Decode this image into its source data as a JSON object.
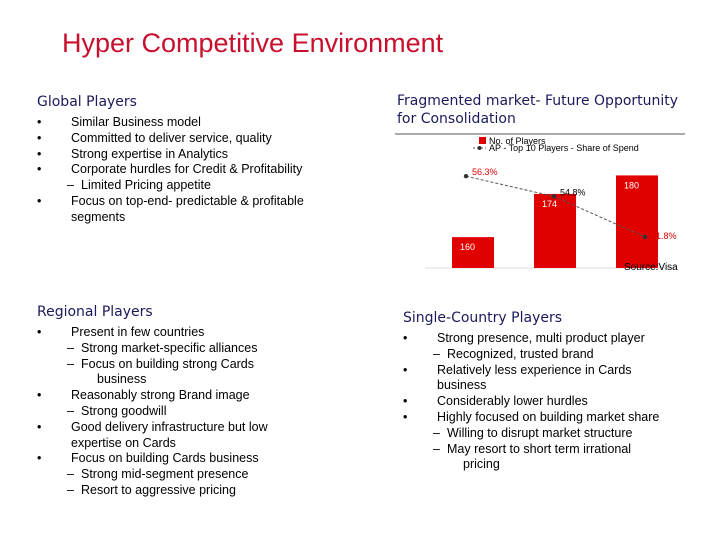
{
  "title": "Hyper Competitive Environment",
  "global": {
    "heading": "Global Players",
    "items": [
      {
        "kind": "b",
        "text": "Similar Business model"
      },
      {
        "kind": "b",
        "text": "Committed to deliver service, quality"
      },
      {
        "kind": "b",
        "text": "Strong expertise in Analytics"
      },
      {
        "kind": "b",
        "text": "Corporate hurdles for Credit & Profitability"
      },
      {
        "kind": "d",
        "text": "Limited Pricing appetite"
      },
      {
        "kind": "b",
        "text": "Focus on top-end- predictable & profitable"
      },
      {
        "kind": "w",
        "text": "segments"
      }
    ]
  },
  "regional": {
    "heading": "Regional Players",
    "items": [
      {
        "kind": "b",
        "text": "Present in few countries"
      },
      {
        "kind": "d",
        "text": "Strong market-specific alliances"
      },
      {
        "kind": "d",
        "text": "Focus on building strong Cards"
      },
      {
        "kind": "w2",
        "text": "business"
      },
      {
        "kind": "b",
        "text": "Reasonably strong Brand image"
      },
      {
        "kind": "d",
        "text": "Strong goodwill"
      },
      {
        "kind": "b",
        "text": "Good delivery infrastructure but low"
      },
      {
        "kind": "w",
        "text": "expertise on Cards"
      },
      {
        "kind": "b",
        "text": "Focus on building Cards business"
      },
      {
        "kind": "d",
        "text": "Strong mid-segment presence"
      },
      {
        "kind": "d",
        "text": "Resort to aggressive pricing"
      }
    ]
  },
  "fragmented": {
    "heading_line1": "Fragmented market- Future Opportunity",
    "heading_line2": "for Consolidation"
  },
  "single": {
    "heading": "Single-Country Players",
    "items": [
      {
        "kind": "b",
        "text": "Strong presence, multi product player"
      },
      {
        "kind": "d",
        "text": "Recognized, trusted brand"
      },
      {
        "kind": "b",
        "text": "Relatively less experience in Cards"
      },
      {
        "kind": "w",
        "text": "business"
      },
      {
        "kind": "b",
        "text": "Considerably lower hurdles"
      },
      {
        "kind": "b",
        "text": "Highly focused on building market share"
      },
      {
        "kind": "d",
        "text": "Willing to disrupt market structure"
      },
      {
        "kind": "d",
        "text": "May resort to short term irrational"
      },
      {
        "kind": "w2",
        "text": "pricing"
      }
    ]
  },
  "chart_data": {
    "type": "bar",
    "categories": [
      "",
      "",
      ""
    ],
    "legend": [
      "No. of Players",
      "AP - Top 10 Players - Share of Spend"
    ],
    "legend_position": "top",
    "series": [
      {
        "name": "No. of Players",
        "type": "bar",
        "values": [
          160,
          174,
          180
        ],
        "labels": [
          "160",
          "174",
          "180"
        ]
      },
      {
        "name": "AP - Top 10 Players - Share of Spend",
        "type": "line",
        "values": [
          56.3,
          54.8,
          51.8
        ],
        "labels": [
          "56.3%",
          "54.8%",
          "51.8%"
        ]
      }
    ],
    "bar_ylim": [
      150,
      185
    ],
    "line_ylim": [
      49.5,
      57.5
    ],
    "source": "Source:Visa",
    "colors": {
      "bar": "#e00000",
      "line": "#555555",
      "text_red": "#c8102e",
      "heading": "#1a1a5a",
      "label_in_bar": "#ffffff",
      "label_line": "#e00000"
    }
  }
}
